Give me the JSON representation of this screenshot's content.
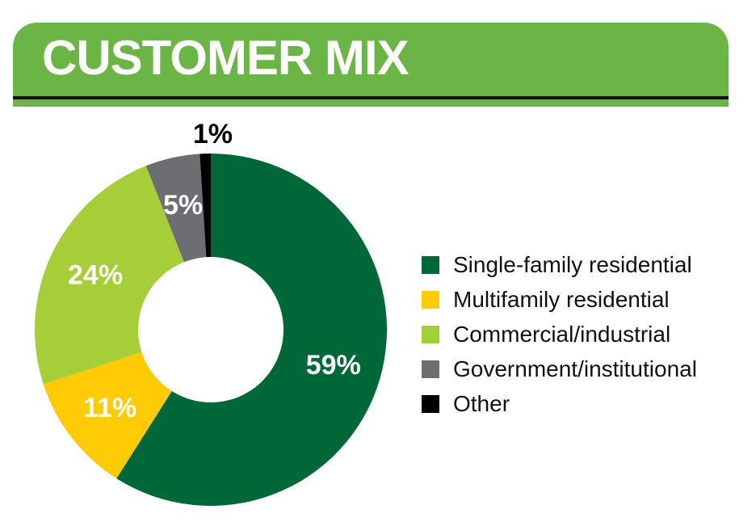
{
  "header": {
    "title": "CUSTOMER MIX"
  },
  "chart_data": {
    "type": "pie",
    "donut": true,
    "title": "CUSTOMER MIX",
    "legend_position": "right",
    "series": [
      {
        "name": "Single-family residential",
        "value": 59,
        "label": "59%",
        "color": "#006838",
        "label_color": "#ffffff"
      },
      {
        "name": "Multifamily residential",
        "value": 11,
        "label": "11%",
        "color": "#ffcb05",
        "label_color": "#ffffff"
      },
      {
        "name": "Commercial/industrial",
        "value": 24,
        "label": "24%",
        "color": "#a6ce39",
        "label_color": "#ffffff"
      },
      {
        "name": "Government/institutional",
        "value": 5,
        "label": "5%",
        "color": "#6d6e71",
        "label_color": "#ffffff"
      },
      {
        "name": "Other",
        "value": 1,
        "label": "1%",
        "color": "#000000",
        "label_color": "#000000"
      }
    ],
    "slice_order": [
      0,
      1,
      2,
      3,
      4
    ]
  },
  "legend": {
    "items": [
      {
        "label": "Single-family residential",
        "color": "#006838"
      },
      {
        "label": "Multifamily residential",
        "color": "#ffcb05"
      },
      {
        "label": "Commercial/industrial",
        "color": "#a6ce39"
      },
      {
        "label": "Government/institutional",
        "color": "#6d6e71"
      },
      {
        "label": "Other",
        "color": "#000000"
      }
    ]
  }
}
